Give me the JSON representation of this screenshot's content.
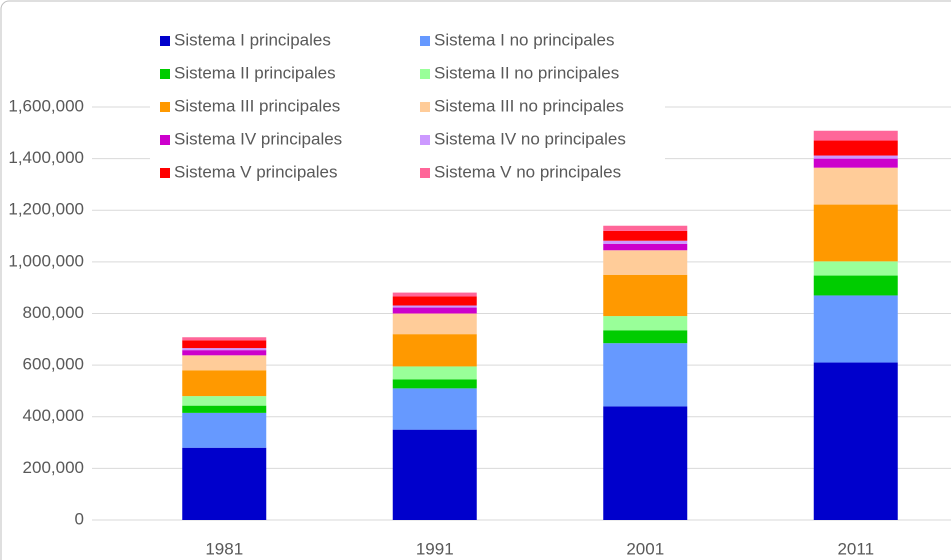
{
  "chart_data": {
    "type": "stacked_bar",
    "categories": [
      "1981",
      "1991",
      "2001",
      "2011"
    ],
    "series": [
      {
        "name": "Sistema I principales",
        "color": "#0000cc",
        "values": [
          280000,
          350000,
          440000,
          610000
        ]
      },
      {
        "name": "Sistema I no principales",
        "color": "#6699ff",
        "values": [
          135000,
          160000,
          245000,
          260000
        ]
      },
      {
        "name": "Sistema II principales",
        "color": "#00cc00",
        "values": [
          28000,
          35000,
          50000,
          77000
        ]
      },
      {
        "name": "Sistema II no principales",
        "color": "#99ff99",
        "values": [
          37000,
          50000,
          55000,
          55000
        ]
      },
      {
        "name": "Sistema III principales",
        "color": "#ff9900",
        "values": [
          100000,
          125000,
          160000,
          220000
        ]
      },
      {
        "name": "Sistema III no principales",
        "color": "#ffcc99",
        "values": [
          58000,
          80000,
          95000,
          143000
        ]
      },
      {
        "name": "Sistema IV principales",
        "color": "#cc00cc",
        "values": [
          20000,
          23000,
          25000,
          35000
        ]
      },
      {
        "name": "Sistema IV no principales",
        "color": "#cc99ff",
        "values": [
          8000,
          8000,
          12000,
          12000
        ]
      },
      {
        "name": "Sistema V principales",
        "color": "#ff0000",
        "values": [
          30000,
          35000,
          38000,
          58000
        ]
      },
      {
        "name": "Sistema V no principales",
        "color": "#ff6699",
        "values": [
          12000,
          15000,
          20000,
          38000
        ]
      }
    ],
    "ylim": [
      0,
      1600000
    ],
    "yticks": [
      0,
      {
        "value": 200000,
        "label": "200,000"
      },
      {
        "value": 400000,
        "label": "400,000"
      },
      {
        "value": 600000,
        "label": "600,000"
      },
      {
        "value": 800000,
        "label": "800,000"
      },
      {
        "value": 1000000,
        "label": "1,000,000"
      },
      {
        "value": 1200000,
        "label": "1,200,000"
      },
      {
        "value": 1400000,
        "label": "1,400,000"
      },
      {
        "value": 1600000,
        "label": "1,600,000"
      }
    ],
    "grid": true
  }
}
